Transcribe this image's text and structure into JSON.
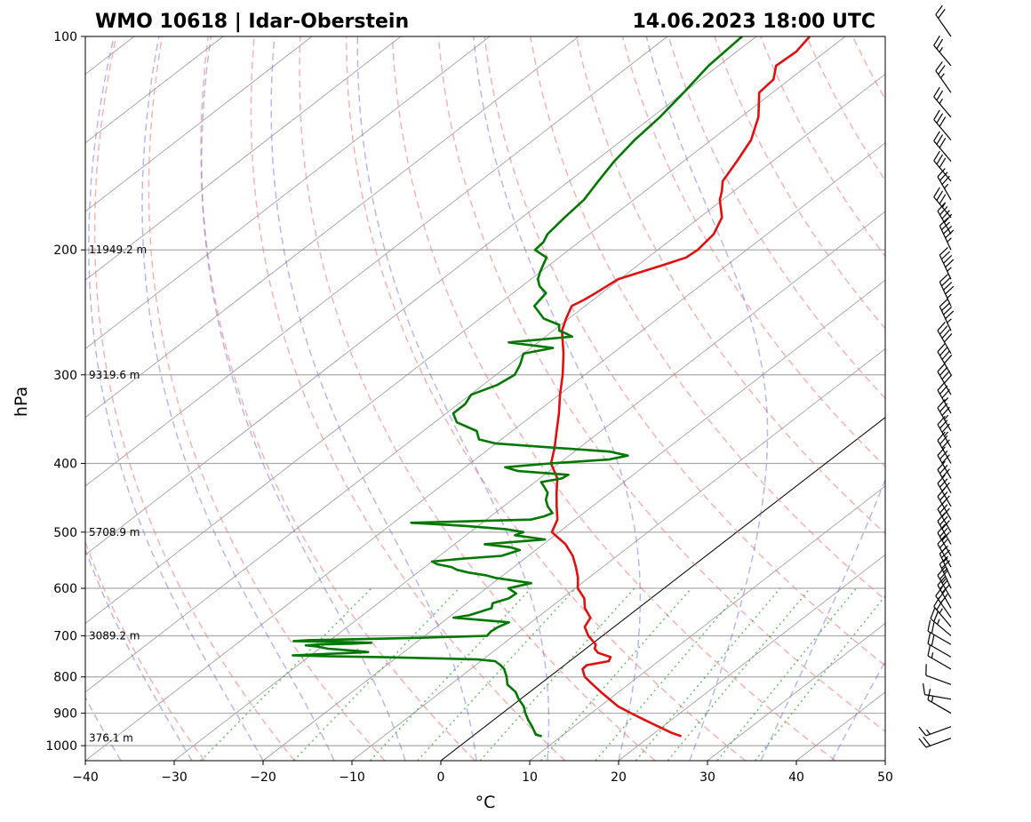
{
  "title_left": "WMO 10618 | Idar-Oberstein",
  "title_right": "14.06.2023 18:00 UTC",
  "chart_data": {
    "type": "skew-t log-p",
    "xlabel": "°C",
    "ylabel": "hPa",
    "xlim": [
      -40,
      50
    ],
    "ylim": [
      1050,
      100
    ],
    "x_ticks": [
      -40,
      -30,
      -20,
      -10,
      0,
      10,
      20,
      30,
      40,
      50
    ],
    "x_tick_labels": [
      "−40",
      "−30",
      "−20",
      "−10",
      "0",
      "10",
      "20",
      "30",
      "40",
      "50"
    ],
    "y_ticks": [
      100,
      200,
      300,
      400,
      500,
      600,
      700,
      800,
      900,
      1000
    ],
    "y_tick_labels": [
      "100",
      "200",
      "300",
      "400",
      "500",
      "600",
      "700",
      "800",
      "900",
      "1000"
    ],
    "y_scale": "log",
    "grid": true,
    "height_labels": [
      {
        "p": 976,
        "text": "376.1 m"
      },
      {
        "p": 700,
        "text": "3089.2 m"
      },
      {
        "p": 500,
        "text": "5708.9 m"
      },
      {
        "p": 300,
        "text": "9319.6 m"
      },
      {
        "p": 200,
        "text": "11949.2 m"
      }
    ],
    "series": [
      {
        "color": "#e01010",
        "pressure": [
          970,
          960,
          940,
          920,
          900,
          880,
          860,
          840,
          820,
          800,
          780,
          770,
          765,
          760,
          750,
          740,
          730,
          720,
          700,
          680,
          660,
          640,
          620,
          600,
          580,
          560,
          540,
          520,
          500,
          480,
          460,
          440,
          420,
          400,
          380,
          360,
          340,
          320,
          300,
          280,
          260,
          250,
          240,
          235,
          230,
          220,
          210,
          205,
          200,
          190,
          180,
          170,
          165,
          160,
          150,
          140,
          130,
          120,
          115,
          110,
          105,
          100
        ],
        "temperature": [
          23.5,
          22.0,
          19.5,
          17.0,
          14.5,
          12.0,
          10.0,
          8.0,
          6.0,
          4.0,
          2.6,
          2.5,
          3.5,
          4.4,
          4.0,
          2.0,
          1.0,
          0.5,
          -1.6,
          -3.3,
          -4.0,
          -6.0,
          -7.5,
          -9.7,
          -11.2,
          -13.0,
          -15.0,
          -17.5,
          -20.8,
          -22.0,
          -24.0,
          -26.0,
          -28.0,
          -30.9,
          -32.8,
          -35.0,
          -37.3,
          -39.9,
          -42.5,
          -45.5,
          -49.0,
          -50.3,
          -51.5,
          -51.0,
          -50.7,
          -50.2,
          -47.2,
          -45.7,
          -45.5,
          -46.0,
          -47.5,
          -50.3,
          -51.4,
          -52.7,
          -54.0,
          -55.5,
          -58.0,
          -61.5,
          -61.8,
          -63.5,
          -63.3,
          -64.0
        ]
      },
      {
        "color": "#007800",
        "pressure": [
          970,
          965,
          940,
          920,
          900,
          880,
          860,
          840,
          820,
          800,
          780,
          770,
          760,
          758,
          756,
          754,
          750,
          748,
          746,
          742,
          738,
          735,
          730,
          725,
          722,
          720,
          718,
          716,
          714,
          712,
          710,
          705,
          700,
          690,
          680,
          670,
          660,
          655,
          650,
          640,
          630,
          620,
          610,
          600,
          590,
          580,
          575,
          570,
          565,
          560,
          555,
          550,
          545,
          540,
          530,
          525,
          520,
          512,
          505,
          500,
          495,
          490,
          485,
          480,
          475,
          470,
          460,
          450,
          440,
          430,
          425,
          420,
          415,
          410,
          405,
          400,
          395,
          390,
          385,
          380,
          375,
          370,
          360,
          350,
          340,
          330,
          320,
          310,
          300,
          290,
          280,
          275,
          270,
          265,
          262,
          260,
          255,
          250,
          240,
          230,
          225,
          220,
          215,
          210,
          205,
          200,
          195,
          190,
          180,
          170,
          160,
          150,
          140,
          130,
          120,
          110,
          100
        ],
        "temperature": [
          7.8,
          6.9,
          5.3,
          3.9,
          2.6,
          1.4,
          -0.2,
          -1.6,
          -3.6,
          -4.8,
          -6.2,
          -7.2,
          -8.4,
          -9.5,
          -10.6,
          -14.0,
          -22.0,
          -28.0,
          -32.0,
          -28.0,
          -24.0,
          -25.5,
          -29.0,
          -30.5,
          -32.0,
          -30.5,
          -27.0,
          -25.0,
          -29.0,
          -34.0,
          -32.5,
          -21.0,
          -13.0,
          -13.2,
          -13.0,
          -12.5,
          -19.4,
          -18.0,
          -17.5,
          -16.5,
          -17.1,
          -16.0,
          -15.9,
          -17.5,
          -15.7,
          -20.5,
          -22.0,
          -24.3,
          -26.0,
          -27.0,
          -29.0,
          -30.0,
          -27.0,
          -23.0,
          -21.8,
          -23.3,
          -26.6,
          -20.5,
          -24.5,
          -24.0,
          -26.5,
          -31.5,
          -38.0,
          -25.0,
          -24.0,
          -23.5,
          -25.0,
          -26.2,
          -27.0,
          -28.5,
          -29.3,
          -27.5,
          -27.3,
          -33.5,
          -35.5,
          -31.0,
          -25.0,
          -23.4,
          -26.0,
          -33.0,
          -40.0,
          -42.5,
          -44.0,
          -47.5,
          -49.2,
          -49.2,
          -49.9,
          -48.4,
          -47.9,
          -48.8,
          -50.0,
          -47.5,
          -53.3,
          -47.0,
          -48.3,
          -49.3,
          -50.2,
          -52.8,
          -55.7,
          -56.3,
          -58.0,
          -59.2,
          -60.0,
          -60.7,
          -61.4,
          -63.8,
          -64.0,
          -64.7,
          -65.2,
          -65.6,
          -66.7,
          -67.8,
          -68.6,
          -69.1,
          -70.0,
          -71.1,
          -71.6
        ]
      }
    ],
    "wind_barbs": {
      "pressure": [
        976,
        940,
        900,
        860,
        820,
        780,
        750,
        720,
        700,
        680,
        660,
        640,
        620,
        600,
        580,
        560,
        540,
        520,
        500,
        480,
        460,
        440,
        420,
        400,
        380,
        360,
        340,
        320,
        300,
        280,
        260,
        240,
        220,
        200,
        190,
        180,
        170,
        160,
        150,
        140,
        130,
        120,
        110,
        100
      ],
      "direction_deg": [
        250,
        250,
        300,
        280,
        290,
        300,
        300,
        300,
        310,
        320,
        325,
        330,
        330,
        335,
        335,
        330,
        330,
        330,
        330,
        330,
        330,
        330,
        330,
        330,
        330,
        330,
        330,
        330,
        330,
        330,
        335,
        335,
        335,
        335,
        330,
        320,
        330,
        320,
        320,
        320,
        320,
        325,
        320,
        325
      ],
      "speed_kt": [
        20,
        15,
        15,
        10,
        10,
        15,
        20,
        20,
        25,
        25,
        30,
        30,
        25,
        25,
        25,
        25,
        30,
        30,
        30,
        30,
        30,
        30,
        30,
        30,
        35,
        35,
        35,
        40,
        40,
        40,
        45,
        45,
        45,
        45,
        40,
        35,
        35,
        30,
        30,
        30,
        25,
        25,
        25,
        20
      ]
    }
  }
}
